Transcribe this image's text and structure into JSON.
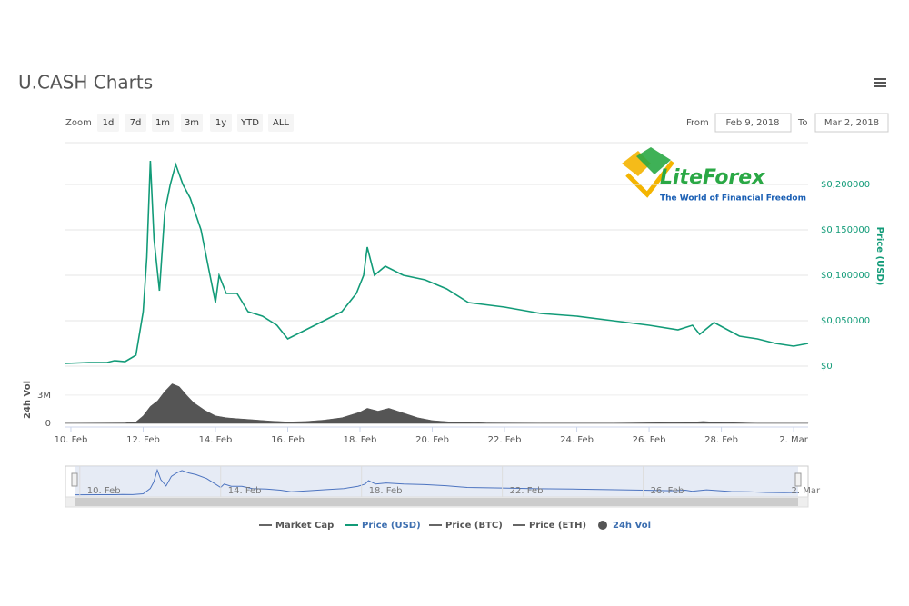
{
  "title": "U.CASH Charts",
  "range_selector": {
    "label": "Zoom",
    "buttons": [
      "1d",
      "7d",
      "1m",
      "3m",
      "1y",
      "YTD",
      "ALL"
    ]
  },
  "date_range": {
    "from_label": "From",
    "from": "Feb 9, 2018",
    "to_label": "To",
    "to": "Mar 2, 2018"
  },
  "watermark": {
    "brand": "LiteForex",
    "tagline": "The World of Financial Freedom"
  },
  "chart_data": [
    {
      "type": "line",
      "y_label": "Price (USD)",
      "grid": true,
      "x": [
        9.85,
        10.5,
        11,
        11.2,
        11.5,
        11.8,
        12.0,
        12.1,
        12.2,
        12.3,
        12.45,
        12.6,
        12.75,
        12.9,
        13.1,
        13.3,
        13.6,
        13.8,
        14.0,
        14.1,
        14.3,
        14.6,
        14.9,
        15.3,
        15.7,
        16.0,
        16.5,
        17.0,
        17.5,
        17.9,
        18.1,
        18.2,
        18.4,
        18.7,
        19.2,
        19.8,
        20.4,
        21.0,
        22.0,
        23.0,
        24.0,
        25.0,
        26.0,
        26.8,
        27.2,
        27.4,
        27.8,
        28.5,
        29.0,
        29.5,
        30.0,
        30.4
      ],
      "series": [
        {
          "name": "Price (USD)",
          "color": "#129b78",
          "values": [
            0.003,
            0.004,
            0.004,
            0.006,
            0.005,
            0.012,
            0.06,
            0.12,
            0.226,
            0.14,
            0.083,
            0.17,
            0.2,
            0.222,
            0.2,
            0.185,
            0.15,
            0.11,
            0.07,
            0.1,
            0.08,
            0.08,
            0.06,
            0.055,
            0.045,
            0.03,
            0.04,
            0.05,
            0.06,
            0.08,
            0.1,
            0.131,
            0.1,
            0.11,
            0.1,
            0.095,
            0.085,
            0.07,
            0.065,
            0.058,
            0.055,
            0.05,
            0.045,
            0.04,
            0.045,
            0.035,
            0.048,
            0.033,
            0.03,
            0.025,
            0.022,
            0.025
          ]
        }
      ],
      "xlim": [
        9.85,
        30.4
      ],
      "xticks": [
        {
          "value": 10,
          "label": "10. Feb"
        },
        {
          "value": 12,
          "label": "12. Feb"
        },
        {
          "value": 14,
          "label": "14. Feb"
        },
        {
          "value": 16,
          "label": "16. Feb"
        },
        {
          "value": 18,
          "label": "18. Feb"
        },
        {
          "value": 20,
          "label": "20. Feb"
        },
        {
          "value": 22,
          "label": "22. Feb"
        },
        {
          "value": 24,
          "label": "24. Feb"
        },
        {
          "value": 26,
          "label": "26. Feb"
        },
        {
          "value": 28,
          "label": "28. Feb"
        },
        {
          "value": 30,
          "label": "2. Mar"
        }
      ],
      "ylim": [
        0,
        0.246
      ],
      "yticks": [
        {
          "value": 0,
          "label": "$0"
        },
        {
          "value": 0.05,
          "label": "$0,050000"
        },
        {
          "value": 0.1,
          "label": "$0,100000"
        },
        {
          "value": 0.15,
          "label": "$0,150000"
        },
        {
          "value": 0.2,
          "label": "$0,200000"
        }
      ]
    },
    {
      "type": "area",
      "y_label": "24h Vol",
      "x": [
        9.85,
        11.5,
        11.8,
        12.0,
        12.2,
        12.4,
        12.6,
        12.8,
        13.0,
        13.2,
        13.4,
        13.7,
        14.0,
        14.3,
        14.6,
        15.0,
        15.5,
        16.0,
        16.5,
        17.0,
        17.5,
        18.0,
        18.2,
        18.5,
        18.8,
        19.2,
        19.6,
        20.0,
        20.5,
        21.5,
        23,
        25,
        27,
        27.5,
        28,
        29,
        30.4
      ],
      "series": [
        {
          "name": "24h Vol",
          "color": "#555555",
          "values": [
            20000,
            50000,
            150000,
            800000,
            1800000,
            2400000,
            3400000,
            4200000,
            3900000,
            3000000,
            2200000,
            1400000,
            800000,
            600000,
            500000,
            400000,
            250000,
            150000,
            200000,
            350000,
            600000,
            1200000,
            1600000,
            1300000,
            1600000,
            1100000,
            600000,
            300000,
            150000,
            50000,
            30000,
            30000,
            100000,
            200000,
            100000,
            20000,
            20000
          ]
        }
      ],
      "xlim": [
        9.85,
        30.4
      ],
      "ylim": [
        0,
        5400000
      ],
      "yticks": [
        0,
        {
          "value": 3000000,
          "label": "3M"
        }
      ]
    }
  ],
  "navigator": {
    "xticks": [
      {
        "value": 10,
        "label": "10. Feb"
      },
      {
        "value": 14,
        "label": "14. Feb"
      },
      {
        "value": 18,
        "label": "18. Feb"
      },
      {
        "value": 22,
        "label": "22. Feb"
      },
      {
        "value": 26,
        "label": "26. Feb"
      },
      {
        "value": 30,
        "label": "2. Mar"
      }
    ]
  },
  "inactive_legend": [
    {
      "name": "Market Cap",
      "color": "#666666"
    },
    {
      "name": "Price (BTC)",
      "color": "#666666"
    },
    {
      "name": "Price (ETH)",
      "color": "#666666"
    }
  ]
}
